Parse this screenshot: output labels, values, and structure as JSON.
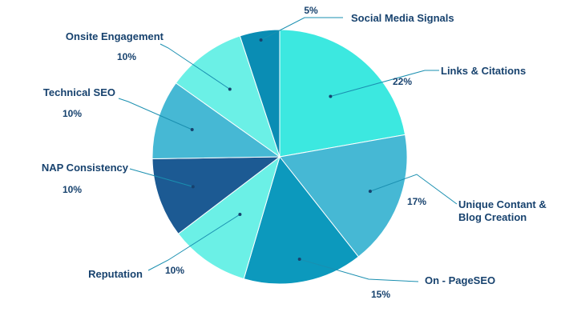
{
  "chart_data": {
    "type": "pie",
    "title": "",
    "slices": [
      {
        "label": "Links & Citations",
        "value": 22,
        "pct_text": "22%",
        "color": "#3CE8E0"
      },
      {
        "label": "Unique Contant & Blog Creation",
        "label_lines": [
          "Unique Contant &",
          "Blog Creation"
        ],
        "value": 17,
        "pct_text": "17%",
        "color": "#46B8D4"
      },
      {
        "label": "On - PageSEO",
        "value": 15,
        "pct_text": "15%",
        "color": "#0C99BD"
      },
      {
        "label": "Reputation",
        "value": 10,
        "pct_text": "10%",
        "color": "#6BF0E6"
      },
      {
        "label": "NAP Consistency",
        "value": 10,
        "pct_text": "10%",
        "color": "#1C5A93"
      },
      {
        "label": "Technical SEO",
        "value": 10,
        "pct_text": "10%",
        "color": "#46B8D4"
      },
      {
        "label": "Onsite Engagement",
        "value": 10,
        "pct_text": "10%",
        "color": "#6BF0E6"
      },
      {
        "label": "Social Media Signals",
        "value": 5,
        "pct_text": "5%",
        "color": "#0A8DB4"
      }
    ],
    "label_color": "#17426E",
    "leader_color": "#1A8FB0",
    "legend": "none"
  }
}
